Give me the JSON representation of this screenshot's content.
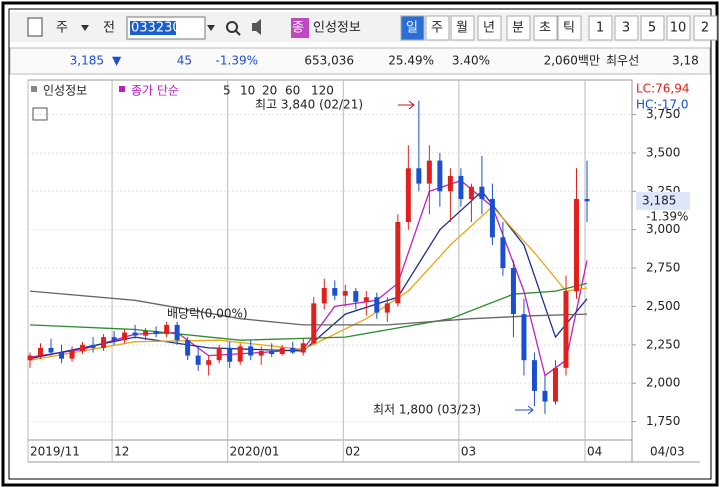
{
  "header": {
    "market": "주",
    "side": "전",
    "code": "033230",
    "type_badge": "종",
    "name": "인성정보",
    "periods": [
      "일",
      "주",
      "월",
      "년",
      "분",
      "초",
      "틱",
      "1",
      "3",
      "5",
      "10",
      "2"
    ],
    "quote": {
      "price": "3,185",
      "arrow": "▼",
      "change": "45",
      "rate": "-1.39%",
      "volume": "653,036",
      "turnover": "25.49%",
      "ratio": "3.40%",
      "amount": "2,060백만",
      "best_label": "최우선",
      "best": "3,18"
    }
  },
  "chart_data": {
    "type": "candlestick",
    "legend_name": "인성정보",
    "ma_label": "종가 단순",
    "lc": "LC:76,94",
    "hc": "HC:-17,0",
    "price_tag": {
      "label": "3,185",
      "change": "-1.39%"
    },
    "last_date": "04/03",
    "categories": [
      "2019/11",
      null,
      null,
      null,
      null,
      null,
      null,
      null,
      "12",
      null,
      null,
      null,
      null,
      null,
      null,
      null,
      null,
      null,
      null,
      "2020/01",
      null,
      null,
      null,
      null,
      null,
      null,
      null,
      null,
      null,
      null,
      "02",
      null,
      null,
      null,
      null,
      null,
      null,
      null,
      null,
      null,
      null,
      "03",
      null,
      null,
      null,
      null,
      null,
      null,
      null,
      null,
      null,
      null,
      null,
      "04"
    ],
    "candles": [
      [
        2150,
        2200,
        2100,
        2180
      ],
      [
        2180,
        2260,
        2160,
        2230
      ],
      [
        2230,
        2290,
        2180,
        2200
      ],
      [
        2200,
        2250,
        2130,
        2160
      ],
      [
        2160,
        2240,
        2140,
        2210
      ],
      [
        2210,
        2270,
        2190,
        2250
      ],
      [
        2250,
        2300,
        2200,
        2230
      ],
      [
        2230,
        2320,
        2210,
        2300
      ],
      [
        2300,
        2340,
        2250,
        2280
      ],
      [
        2280,
        2350,
        2260,
        2330
      ],
      [
        2330,
        2380,
        2290,
        2310
      ],
      [
        2310,
        2360,
        2280,
        2340
      ],
      [
        2340,
        2370,
        2300,
        2320
      ],
      [
        2320,
        2400,
        2300,
        2380
      ],
      [
        2380,
        2400,
        2250,
        2280
      ],
      [
        2280,
        2300,
        2150,
        2180
      ],
      [
        2180,
        2230,
        2080,
        2120
      ],
      [
        2120,
        2180,
        2050,
        2150
      ],
      [
        2150,
        2250,
        2130,
        2230
      ],
      [
        2230,
        2270,
        2100,
        2140
      ],
      [
        2140,
        2260,
        2120,
        2240
      ],
      [
        2240,
        2280,
        2150,
        2180
      ],
      [
        2180,
        2240,
        2120,
        2210
      ],
      [
        2210,
        2260,
        2170,
        2190
      ],
      [
        2190,
        2250,
        2180,
        2230
      ],
      [
        2230,
        2270,
        2190,
        2200
      ],
      [
        2200,
        2290,
        2180,
        2260
      ],
      [
        2260,
        2560,
        2250,
        2520
      ],
      [
        2520,
        2680,
        2480,
        2620
      ],
      [
        2620,
        2670,
        2540,
        2570
      ],
      [
        2570,
        2640,
        2500,
        2600
      ],
      [
        2600,
        2620,
        2480,
        2530
      ],
      [
        2530,
        2600,
        2440,
        2560
      ],
      [
        2560,
        2590,
        2420,
        2460
      ],
      [
        2460,
        2560,
        2400,
        2520
      ],
      [
        2520,
        3100,
        2500,
        3050
      ],
      [
        3050,
        3550,
        3000,
        3400
      ],
      [
        3400,
        3840,
        3250,
        3300
      ],
      [
        3300,
        3550,
        3100,
        3450
      ],
      [
        3450,
        3500,
        3150,
        3250
      ],
      [
        3250,
        3400,
        3050,
        3350
      ],
      [
        3350,
        3400,
        3150,
        3200
      ],
      [
        3200,
        3300,
        3050,
        3280
      ],
      [
        3280,
        3480,
        3100,
        3200
      ],
      [
        3200,
        3300,
        2900,
        2950
      ],
      [
        2950,
        3050,
        2700,
        2750
      ],
      [
        2750,
        2800,
        2300,
        2450
      ],
      [
        2450,
        2550,
        2050,
        2150
      ],
      [
        2150,
        2200,
        1850,
        1950
      ],
      [
        1950,
        2050,
        1800,
        1880
      ],
      [
        1880,
        2150,
        1860,
        2100
      ],
      [
        2100,
        2700,
        2050,
        2600
      ],
      [
        2600,
        3400,
        2550,
        3200
      ],
      [
        3200,
        3450,
        3050,
        3185
      ]
    ],
    "up_color": "#e0201b",
    "down_color": "#1a4fd0",
    "series": [
      {
        "name": "5",
        "color": "#c020c0",
        "x": [
          0,
          5,
          10,
          14,
          17,
          22,
          26,
          29,
          33,
          35,
          38,
          41,
          44,
          47,
          49,
          51,
          53
        ],
        "values": [
          2170,
          2220,
          2320,
          2330,
          2180,
          2200,
          2220,
          2500,
          2540,
          2650,
          3250,
          3320,
          3150,
          2600,
          2050,
          2150,
          2800
        ]
      },
      {
        "name": "10",
        "color": "#1f2f8f",
        "x": [
          0,
          10,
          17,
          26,
          30,
          35,
          39,
          43,
          47,
          50,
          53
        ],
        "values": [
          2160,
          2300,
          2230,
          2210,
          2450,
          2560,
          3000,
          3250,
          2900,
          2300,
          2550
        ]
      },
      {
        "name": "20",
        "color": "#e6a817",
        "x": [
          0,
          10,
          18,
          26,
          32,
          36,
          40,
          44,
          48,
          51,
          53
        ],
        "values": [
          2150,
          2270,
          2280,
          2220,
          2420,
          2600,
          2900,
          3150,
          2850,
          2600,
          2620
        ]
      },
      {
        "name": "60",
        "color": "#2e8b2e",
        "x": [
          0,
          10,
          20,
          30,
          40,
          46,
          50,
          53
        ],
        "values": [
          2380,
          2350,
          2280,
          2300,
          2420,
          2580,
          2600,
          2650
        ]
      },
      {
        "name": "120",
        "color": "#666666",
        "x": [
          0,
          10,
          20,
          26,
          34,
          42,
          48,
          53
        ],
        "values": [
          2600,
          2540,
          2420,
          2380,
          2380,
          2420,
          2440,
          2450
        ]
      }
    ],
    "ylim": [
      1630,
      3975
    ],
    "yticks": [
      {
        "value": 1750,
        "label": "1,750"
      },
      {
        "value": 2000,
        "label": "2,000"
      },
      {
        "value": 2250,
        "label": "2,250"
      },
      {
        "value": 2500,
        "label": "2,500"
      },
      {
        "value": 2750,
        "label": "2,750"
      },
      {
        "value": 3000,
        "label": "3,000"
      },
      {
        "value": 3250,
        "label": "3,250"
      },
      {
        "value": 3500,
        "label": "3,500"
      },
      {
        "value": 3750,
        "label": "3,750"
      }
    ],
    "annotations": [
      {
        "label": "최고 3,840 (02/21)"
      },
      {
        "label": "최저 1,800 (03/23)"
      },
      {
        "label": "배당락(0,00%)"
      }
    ]
  }
}
